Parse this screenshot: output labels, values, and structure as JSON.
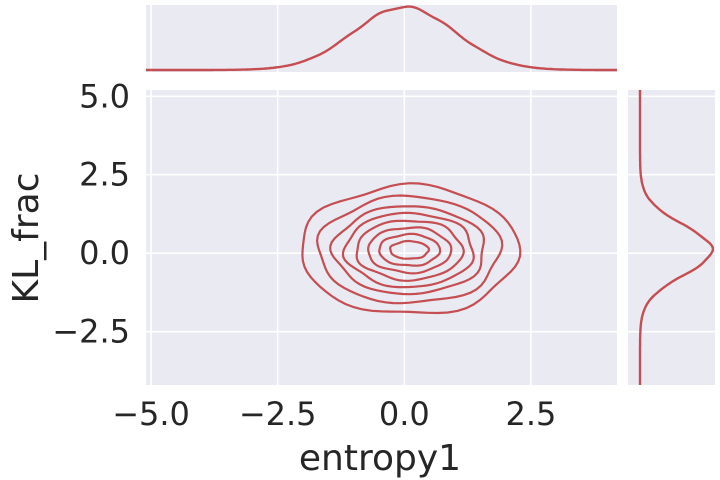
{
  "chart_data": {
    "type": "jointplot-kde",
    "title": "",
    "xlabel": "entropy1",
    "ylabel": "KL_frac",
    "xlim": [
      -5.1,
      4.2
    ],
    "ylim": [
      -4.2,
      5.2
    ],
    "x_ticks": [
      -5.0,
      -2.5,
      0.0,
      2.5
    ],
    "x_tick_labels": [
      "−5.0",
      "−2.5",
      "0.0",
      "2.5"
    ],
    "y_ticks": [
      -2.5,
      0.0,
      2.5,
      5.0
    ],
    "y_tick_labels": [
      "−2.5",
      "0.0",
      "2.5",
      "5.0"
    ],
    "grid": true,
    "background": "#eaeaf2",
    "line_color": "#c44e52",
    "joint_density": {
      "center": [
        0.1,
        0.1
      ],
      "contour_radii_x": [
        0.38,
        0.6,
        0.82,
        1.05,
        1.27,
        1.5,
        1.8,
        2.15
      ],
      "contour_radii_y": [
        0.28,
        0.5,
        0.72,
        0.95,
        1.18,
        1.4,
        1.7,
        2.05
      ]
    },
    "marginal_x": {
      "mean": 0.0,
      "sd": 1.0
    },
    "marginal_y": {
      "mean": 0.1,
      "sd": 0.8
    }
  }
}
